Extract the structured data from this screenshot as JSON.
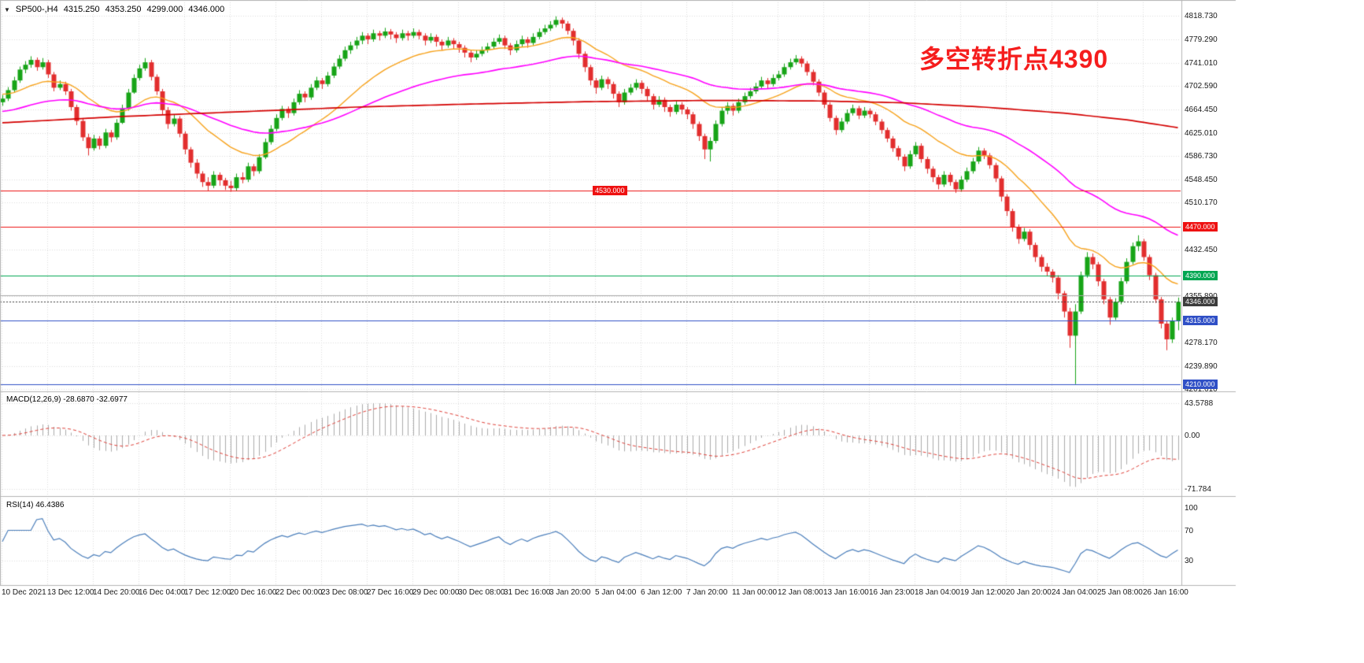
{
  "symbol_info": {
    "dropdown_icon": "▼",
    "symbol": "SP500-,H4",
    "open": "4315.250",
    "high": "4353.250",
    "low": "4299.000",
    "close": "4346.000"
  },
  "annotation": {
    "text": "多空转折点4390",
    "color": "#f51d1d"
  },
  "colors": {
    "background": "#ffffff",
    "grid": "#dcdcdc",
    "separator": "#b4b4b4",
    "candle_up": "#17a417",
    "candle_down": "#e22e2e",
    "scale_text": "#1a1a1a"
  },
  "chart_data": {
    "type": "candlestick",
    "symbol": "SP500-",
    "timeframe": "H4",
    "ylim": [
      4198,
      4832
    ],
    "y_axis_labels": [
      "4818.730",
      "4779.290",
      "4741.010",
      "4702.590",
      "4664.450",
      "4625.010",
      "4586.730",
      "4548.450",
      "4510.170",
      "4432.450",
      "4355.890",
      "4278.170",
      "4239.890",
      "4201.610"
    ],
    "x_axis_labels": [
      "10 Dec 2021",
      "13 Dec 12:00",
      "14 Dec 20:00",
      "16 Dec 04:00",
      "17 Dec 12:00",
      "20 Dec 16:00",
      "22 Dec 00:00",
      "23 Dec 08:00",
      "27 Dec 16:00",
      "29 Dec 00:00",
      "30 Dec 08:00",
      "31 Dec 16:00",
      "3 Jan 20:00",
      "5 Jan 04:00",
      "6 Jan 12:00",
      "7 Jan 20:00",
      "11 Jan 00:00",
      "12 Jan 08:00",
      "13 Jan 16:00",
      "16 Jan 23:00",
      "18 Jan 04:00",
      "19 Jan 12:00",
      "20 Jan 20:00",
      "24 Jan 04:00",
      "25 Jan 08:00",
      "26 Jan 16:00"
    ],
    "ohlc": [
      [
        4676,
        4688,
        4670,
        4682
      ],
      [
        4682,
        4701,
        4678,
        4696
      ],
      [
        4696,
        4718,
        4692,
        4712
      ],
      [
        4712,
        4735,
        4708,
        4730
      ],
      [
        4730,
        4744,
        4724,
        4738
      ],
      [
        4738,
        4752,
        4733,
        4746
      ],
      [
        4746,
        4750,
        4728,
        4734
      ],
      [
        4734,
        4749,
        4730,
        4742
      ],
      [
        4742,
        4746,
        4716,
        4722
      ],
      [
        4722,
        4726,
        4694,
        4700
      ],
      [
        4700,
        4712,
        4696,
        4706
      ],
      [
        4706,
        4710,
        4688,
        4694
      ],
      [
        4694,
        4698,
        4662,
        4668
      ],
      [
        4668,
        4672,
        4638,
        4645
      ],
      [
        4645,
        4650,
        4612,
        4618
      ],
      [
        4618,
        4624,
        4588,
        4600
      ],
      [
        4600,
        4622,
        4596,
        4616
      ],
      [
        4616,
        4620,
        4598,
        4604
      ],
      [
        4604,
        4632,
        4600,
        4626
      ],
      [
        4626,
        4630,
        4610,
        4618
      ],
      [
        4618,
        4648,
        4614,
        4642
      ],
      [
        4642,
        4672,
        4640,
        4666
      ],
      [
        4666,
        4698,
        4662,
        4692
      ],
      [
        4692,
        4722,
        4690,
        4716
      ],
      [
        4716,
        4738,
        4712,
        4732
      ],
      [
        4732,
        4749,
        4728,
        4742
      ],
      [
        4742,
        4746,
        4712,
        4718
      ],
      [
        4718,
        4722,
        4688,
        4694
      ],
      [
        4694,
        4698,
        4656,
        4663
      ],
      [
        4663,
        4668,
        4632,
        4640
      ],
      [
        4640,
        4655,
        4636,
        4649
      ],
      [
        4649,
        4653,
        4618,
        4624
      ],
      [
        4624,
        4628,
        4590,
        4598
      ],
      [
        4598,
        4602,
        4568,
        4576
      ],
      [
        4576,
        4582,
        4550,
        4558
      ],
      [
        4558,
        4562,
        4536,
        4544
      ],
      [
        4544,
        4552,
        4530,
        4538
      ],
      [
        4538,
        4562,
        4534,
        4556
      ],
      [
        4556,
        4560,
        4538,
        4547
      ],
      [
        4547,
        4551,
        4531,
        4538
      ],
      [
        4538,
        4546,
        4528,
        4534
      ],
      [
        4534,
        4558,
        4530,
        4552
      ],
      [
        4552,
        4560,
        4542,
        4548
      ],
      [
        4548,
        4576,
        4544,
        4570
      ],
      [
        4570,
        4574,
        4554,
        4562
      ],
      [
        4562,
        4590,
        4558,
        4585
      ],
      [
        4585,
        4616,
        4582,
        4610
      ],
      [
        4610,
        4638,
        4606,
        4632
      ],
      [
        4632,
        4656,
        4628,
        4650
      ],
      [
        4650,
        4670,
        4646,
        4665
      ],
      [
        4665,
        4669,
        4650,
        4658
      ],
      [
        4658,
        4682,
        4654,
        4676
      ],
      [
        4676,
        4696,
        4672,
        4690
      ],
      [
        4690,
        4694,
        4676,
        4684
      ],
      [
        4684,
        4706,
        4680,
        4700
      ],
      [
        4700,
        4718,
        4696,
        4712
      ],
      [
        4712,
        4716,
        4698,
        4706
      ],
      [
        4706,
        4726,
        4702,
        4720
      ],
      [
        4720,
        4741,
        4716,
        4735
      ],
      [
        4735,
        4754,
        4731,
        4748
      ],
      [
        4748,
        4768,
        4744,
        4762
      ],
      [
        4762,
        4776,
        4756,
        4770
      ],
      [
        4770,
        4784,
        4764,
        4778
      ],
      [
        4778,
        4792,
        4772,
        4786
      ],
      [
        4786,
        4790,
        4772,
        4780
      ],
      [
        4780,
        4796,
        4776,
        4790
      ],
      [
        4790,
        4794,
        4778,
        4786
      ],
      [
        4786,
        4799,
        4782,
        4793
      ],
      [
        4793,
        4797,
        4780,
        4788
      ],
      [
        4788,
        4792,
        4774,
        4782
      ],
      [
        4782,
        4796,
        4778,
        4790
      ],
      [
        4790,
        4794,
        4778,
        4786
      ],
      [
        4786,
        4798,
        4782,
        4792
      ],
      [
        4792,
        4796,
        4780,
        4786
      ],
      [
        4786,
        4790,
        4770,
        4778
      ],
      [
        4778,
        4790,
        4774,
        4784
      ],
      [
        4784,
        4788,
        4768,
        4776
      ],
      [
        4776,
        4780,
        4762,
        4770
      ],
      [
        4770,
        4784,
        4766,
        4778
      ],
      [
        4778,
        4782,
        4764,
        4772
      ],
      [
        4772,
        4776,
        4758,
        4766
      ],
      [
        4766,
        4770,
        4750,
        4758
      ],
      [
        4758,
        4762,
        4742,
        4750
      ],
      [
        4750,
        4762,
        4746,
        4756
      ],
      [
        4756,
        4768,
        4752,
        4762
      ],
      [
        4762,
        4774,
        4758,
        4768
      ],
      [
        4768,
        4782,
        4764,
        4776
      ],
      [
        4776,
        4788,
        4772,
        4782
      ],
      [
        4782,
        4786,
        4764,
        4770
      ],
      [
        4770,
        4774,
        4754,
        4762
      ],
      [
        4762,
        4778,
        4758,
        4772
      ],
      [
        4772,
        4786,
        4768,
        4780
      ],
      [
        4780,
        4784,
        4766,
        4774
      ],
      [
        4774,
        4790,
        4770,
        4784
      ],
      [
        4784,
        4798,
        4780,
        4792
      ],
      [
        4792,
        4804,
        4788,
        4798
      ],
      [
        4798,
        4810,
        4794,
        4804
      ],
      [
        4804,
        4818,
        4800,
        4812
      ],
      [
        4812,
        4816,
        4798,
        4806
      ],
      [
        4806,
        4810,
        4788,
        4794
      ],
      [
        4794,
        4798,
        4770,
        4778
      ],
      [
        4778,
        4782,
        4748,
        4756
      ],
      [
        4756,
        4760,
        4726,
        4734
      ],
      [
        4734,
        4738,
        4704,
        4712
      ],
      [
        4712,
        4716,
        4690,
        4700
      ],
      [
        4700,
        4720,
        4696,
        4714
      ],
      [
        4714,
        4718,
        4698,
        4706
      ],
      [
        4706,
        4710,
        4682,
        4690
      ],
      [
        4690,
        4694,
        4668,
        4676
      ],
      [
        4676,
        4698,
        4672,
        4692
      ],
      [
        4692,
        4706,
        4688,
        4700
      ],
      [
        4700,
        4714,
        4696,
        4708
      ],
      [
        4708,
        4712,
        4690,
        4698
      ],
      [
        4698,
        4702,
        4678,
        4686
      ],
      [
        4686,
        4690,
        4664,
        4672
      ],
      [
        4672,
        4686,
        4668,
        4680
      ],
      [
        4680,
        4684,
        4660,
        4668
      ],
      [
        4668,
        4672,
        4652,
        4660
      ],
      [
        4660,
        4678,
        4656,
        4672
      ],
      [
        4672,
        4676,
        4656,
        4664
      ],
      [
        4664,
        4668,
        4648,
        4656
      ],
      [
        4656,
        4660,
        4632,
        4640
      ],
      [
        4640,
        4644,
        4612,
        4620
      ],
      [
        4620,
        4624,
        4582,
        4598
      ],
      [
        4598,
        4618,
        4578,
        4612
      ],
      [
        4612,
        4646,
        4608,
        4640
      ],
      [
        4640,
        4668,
        4636,
        4662
      ],
      [
        4662,
        4676,
        4656,
        4670
      ],
      [
        4670,
        4674,
        4654,
        4662
      ],
      [
        4662,
        4682,
        4658,
        4676
      ],
      [
        4676,
        4692,
        4672,
        4686
      ],
      [
        4686,
        4700,
        4682,
        4694
      ],
      [
        4694,
        4708,
        4690,
        4702
      ],
      [
        4702,
        4718,
        4698,
        4712
      ],
      [
        4712,
        4716,
        4698,
        4706
      ],
      [
        4706,
        4722,
        4702,
        4716
      ],
      [
        4716,
        4728,
        4712,
        4722
      ],
      [
        4722,
        4740,
        4718,
        4734
      ],
      [
        4734,
        4748,
        4730,
        4742
      ],
      [
        4742,
        4754,
        4738,
        4748
      ],
      [
        4748,
        4752,
        4734,
        4740
      ],
      [
        4740,
        4744,
        4720,
        4726
      ],
      [
        4726,
        4730,
        4704,
        4710
      ],
      [
        4710,
        4714,
        4686,
        4692
      ],
      [
        4692,
        4696,
        4666,
        4672
      ],
      [
        4672,
        4676,
        4644,
        4650
      ],
      [
        4650,
        4654,
        4622,
        4630
      ],
      [
        4630,
        4650,
        4626,
        4644
      ],
      [
        4644,
        4664,
        4640,
        4658
      ],
      [
        4658,
        4672,
        4654,
        4666
      ],
      [
        4666,
        4670,
        4648,
        4654
      ],
      [
        4654,
        4668,
        4650,
        4662
      ],
      [
        4662,
        4666,
        4650,
        4656
      ],
      [
        4656,
        4660,
        4638,
        4644
      ],
      [
        4644,
        4648,
        4624,
        4630
      ],
      [
        4630,
        4634,
        4610,
        4616
      ],
      [
        4616,
        4620,
        4594,
        4600
      ],
      [
        4600,
        4604,
        4580,
        4586
      ],
      [
        4586,
        4590,
        4562,
        4570
      ],
      [
        4570,
        4596,
        4566,
        4590
      ],
      [
        4590,
        4610,
        4586,
        4604
      ],
      [
        4604,
        4608,
        4576,
        4582
      ],
      [
        4582,
        4586,
        4558,
        4566
      ],
      [
        4566,
        4570,
        4544,
        4552
      ],
      [
        4552,
        4556,
        4532,
        4540
      ],
      [
        4540,
        4562,
        4536,
        4556
      ],
      [
        4556,
        4560,
        4538,
        4544
      ],
      [
        4544,
        4548,
        4526,
        4532
      ],
      [
        4532,
        4554,
        4528,
        4548
      ],
      [
        4548,
        4568,
        4544,
        4562
      ],
      [
        4562,
        4584,
        4558,
        4578
      ],
      [
        4578,
        4602,
        4574,
        4596
      ],
      [
        4596,
        4600,
        4582,
        4588
      ],
      [
        4588,
        4592,
        4566,
        4572
      ],
      [
        4572,
        4576,
        4544,
        4550
      ],
      [
        4550,
        4554,
        4512,
        4520
      ],
      [
        4520,
        4524,
        4488,
        4496
      ],
      [
        4496,
        4500,
        4462,
        4470
      ],
      [
        4470,
        4474,
        4442,
        4450
      ],
      [
        4450,
        4468,
        4446,
        4462
      ],
      [
        4462,
        4466,
        4432,
        4440
      ],
      [
        4440,
        4444,
        4412,
        4420
      ],
      [
        4420,
        4424,
        4396,
        4404
      ],
      [
        4404,
        4410,
        4388,
        4396
      ],
      [
        4396,
        4400,
        4378,
        4386
      ],
      [
        4386,
        4390,
        4350,
        4360
      ],
      [
        4360,
        4364,
        4320,
        4330
      ],
      [
        4330,
        4336,
        4270,
        4290
      ],
      [
        4290,
        4342,
        4210,
        4330
      ],
      [
        4330,
        4396,
        4326,
        4390
      ],
      [
        4390,
        4428,
        4386,
        4420
      ],
      [
        4420,
        4426,
        4400,
        4408
      ],
      [
        4408,
        4412,
        4372,
        4380
      ],
      [
        4380,
        4384,
        4342,
        4350
      ],
      [
        4350,
        4354,
        4308,
        4320
      ],
      [
        4320,
        4352,
        4316,
        4346
      ],
      [
        4346,
        4386,
        4342,
        4380
      ],
      [
        4380,
        4418,
        4376,
        4412
      ],
      [
        4412,
        4444,
        4408,
        4438
      ],
      [
        4438,
        4456,
        4430,
        4446
      ],
      [
        4446,
        4450,
        4414,
        4420
      ],
      [
        4420,
        4424,
        4382,
        4390
      ],
      [
        4390,
        4394,
        4344,
        4350
      ],
      [
        4350,
        4354,
        4302,
        4310
      ],
      [
        4310,
        4314,
        4266,
        4284
      ],
      [
        4284,
        4320,
        4278,
        4315
      ],
      [
        4315,
        4353,
        4299,
        4346
      ]
    ],
    "overlays": [
      {
        "name": "ma-fast",
        "type": "EMA",
        "period": 21,
        "seed": 4690,
        "color": "#f7a21b"
      },
      {
        "name": "ma-mid",
        "type": "EMA",
        "period": 55,
        "seed": 4660,
        "color": "#ff00ff"
      },
      {
        "name": "ma-slow",
        "type": "keypoints",
        "color": "#d40000",
        "keypoints": [
          [
            0,
            4642
          ],
          [
            20,
            4652
          ],
          [
            41,
            4660
          ],
          [
            62,
            4668
          ],
          [
            82,
            4673
          ],
          [
            103,
            4677
          ],
          [
            124,
            4679
          ],
          [
            144,
            4678
          ],
          [
            158,
            4675
          ],
          [
            172,
            4668
          ],
          [
            186,
            4658
          ],
          [
            197,
            4647
          ],
          [
            206,
            4634
          ]
        ]
      }
    ],
    "horizontal_lines": [
      {
        "name": "resistance-4530",
        "value": 4530,
        "label": "4530.000",
        "color": "#ee1111",
        "style": "solid",
        "badge": "inline",
        "badge_x": 753
      },
      {
        "name": "resistance-4470",
        "value": 4470,
        "label": "4470.000",
        "color": "#ee1111",
        "style": "solid",
        "badge": "axis"
      },
      {
        "name": "pivot-4390",
        "value": 4390,
        "label": "4390.000",
        "color": "#00a651",
        "style": "solid",
        "badge": "axis"
      },
      {
        "name": "gray-line-4357",
        "value": 4357,
        "label": "",
        "color": "#a8a8a8",
        "style": "solid",
        "badge": "none"
      },
      {
        "name": "last-price",
        "value": 4346,
        "label": "4346.000",
        "color": "#3c3c3c",
        "style": "dotted",
        "badge": "axis"
      },
      {
        "name": "support-4315",
        "value": 4315,
        "label": "4315.000",
        "color": "#2f4fc6",
        "style": "solid",
        "badge": "axis"
      },
      {
        "name": "support-4210",
        "value": 4210,
        "label": "4210.000",
        "color": "#2f4fc6",
        "style": "solid",
        "badge": "axis"
      }
    ],
    "indicators": [
      {
        "name": "MACD",
        "label": "MACD(12,26,9) -28.6870 -32.6977",
        "params": [
          12,
          26,
          9
        ],
        "axis_labels": [
          {
            "text": "43.5788",
            "value": 43.5788
          },
          {
            "text": "0.00",
            "value": 0
          },
          {
            "text": "-71.784",
            "value": -71.784
          }
        ],
        "histogram_color": "#ababab",
        "signal_color": "#e04038"
      },
      {
        "name": "RSI",
        "label": "RSI(14) 46.4386",
        "period": 14,
        "levels": [
          70,
          30
        ],
        "axis_labels": [
          {
            "text": "100",
            "value": 100
          },
          {
            "text": "70",
            "value": 70
          },
          {
            "text": "30",
            "value": 30
          }
        ],
        "line_color": "#4a7ebb"
      }
    ]
  }
}
